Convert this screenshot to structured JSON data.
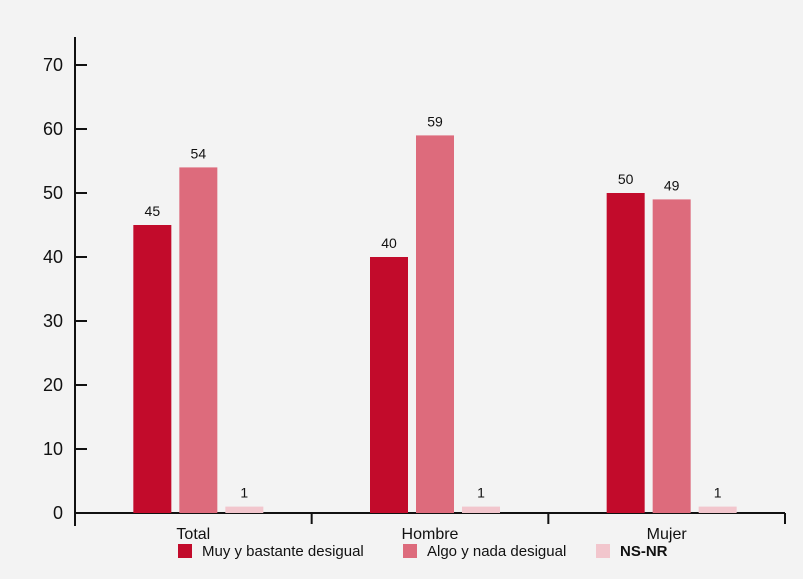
{
  "chart_data": {
    "type": "bar",
    "categories": [
      "Total",
      "Hombre",
      "Mujer"
    ],
    "series": [
      {
        "name": "Muy y bastante desigual",
        "values": [
          45,
          40,
          50
        ],
        "color": "#c20b2b"
      },
      {
        "name": "Algo y nada desigual",
        "values": [
          54,
          59,
          49
        ],
        "color": "#dd6b7c"
      },
      {
        "name": "NS-NR",
        "values": [
          1,
          1,
          1
        ],
        "color": "#f2c6cd"
      }
    ],
    "ylim": [
      0,
      70
    ],
    "yticks": [
      0,
      10,
      20,
      30,
      40,
      50,
      60,
      70
    ],
    "data_labels": true,
    "legend_position": "bottom",
    "grid": false,
    "background": "#f3f3f3"
  }
}
